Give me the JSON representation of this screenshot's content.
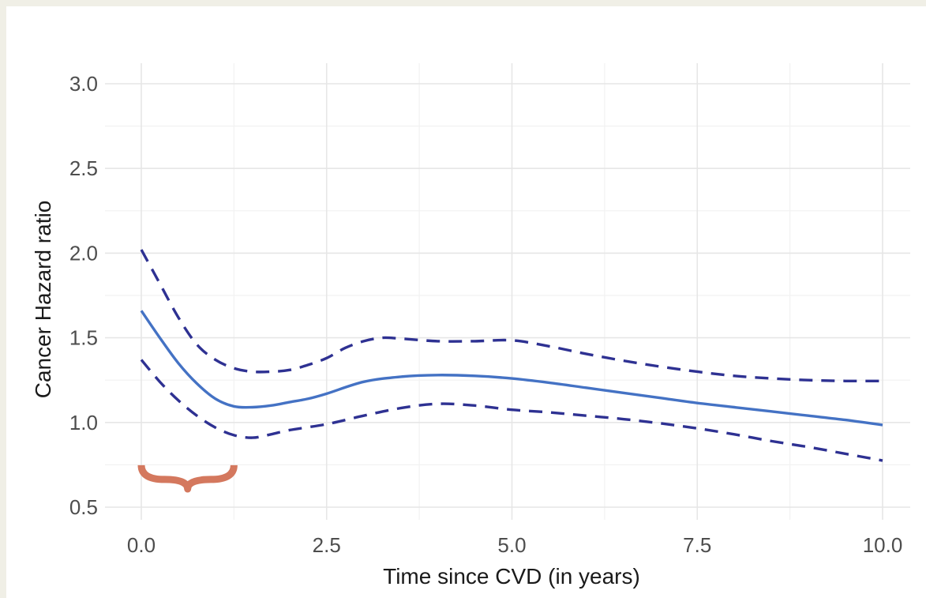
{
  "chart_data": {
    "type": "line",
    "title": "",
    "xlabel": "Time since CVD (in years)",
    "ylabel": "Cancer Hazard ratio",
    "xlim": [
      0,
      10
    ],
    "ylim": [
      0.5,
      3.0
    ],
    "x_ticks": [
      "0.0",
      "2.5",
      "5.0",
      "7.5",
      "10.0"
    ],
    "y_ticks": [
      "0.5",
      "1.0",
      "1.5",
      "2.0",
      "2.5",
      "3.0"
    ],
    "grid": true,
    "legend": "none",
    "series": [
      {
        "style": "solid",
        "color": "#4472c4",
        "points": [
          [
            0,
            1.66
          ],
          [
            0.25,
            1.5
          ],
          [
            0.5,
            1.35
          ],
          [
            0.75,
            1.23
          ],
          [
            1.0,
            1.14
          ],
          [
            1.25,
            1.095
          ],
          [
            1.5,
            1.09
          ],
          [
            1.75,
            1.1
          ],
          [
            2.0,
            1.12
          ],
          [
            2.25,
            1.14
          ],
          [
            2.5,
            1.17
          ],
          [
            3.0,
            1.24
          ],
          [
            3.5,
            1.27
          ],
          [
            4.0,
            1.28
          ],
          [
            4.5,
            1.275
          ],
          [
            5.0,
            1.26
          ],
          [
            5.5,
            1.235
          ],
          [
            6.0,
            1.205
          ],
          [
            6.5,
            1.175
          ],
          [
            7.0,
            1.145
          ],
          [
            7.5,
            1.115
          ],
          [
            8.0,
            1.09
          ],
          [
            8.5,
            1.065
          ],
          [
            9.0,
            1.04
          ],
          [
            9.5,
            1.015
          ],
          [
            10.0,
            0.985
          ]
        ]
      },
      {
        "style": "dashed",
        "color": "#2e3192",
        "points": [
          [
            0,
            2.02
          ],
          [
            0.25,
            1.82
          ],
          [
            0.5,
            1.62
          ],
          [
            0.75,
            1.46
          ],
          [
            1.0,
            1.37
          ],
          [
            1.25,
            1.32
          ],
          [
            1.5,
            1.3
          ],
          [
            1.75,
            1.3
          ],
          [
            2.0,
            1.31
          ],
          [
            2.25,
            1.34
          ],
          [
            2.5,
            1.38
          ],
          [
            2.75,
            1.44
          ],
          [
            3.0,
            1.48
          ],
          [
            3.25,
            1.5
          ],
          [
            3.5,
            1.495
          ],
          [
            4.0,
            1.48
          ],
          [
            4.5,
            1.48
          ],
          [
            5.0,
            1.485
          ],
          [
            5.5,
            1.45
          ],
          [
            6.0,
            1.405
          ],
          [
            6.5,
            1.365
          ],
          [
            7.0,
            1.33
          ],
          [
            7.5,
            1.3
          ],
          [
            8.0,
            1.275
          ],
          [
            8.5,
            1.26
          ],
          [
            9.0,
            1.25
          ],
          [
            9.5,
            1.245
          ],
          [
            10.0,
            1.245
          ]
        ]
      },
      {
        "style": "dashed",
        "color": "#2e3192",
        "points": [
          [
            0,
            1.37
          ],
          [
            0.25,
            1.24
          ],
          [
            0.5,
            1.13
          ],
          [
            0.75,
            1.04
          ],
          [
            1.0,
            0.97
          ],
          [
            1.25,
            0.925
          ],
          [
            1.5,
            0.91
          ],
          [
            1.75,
            0.93
          ],
          [
            2.0,
            0.955
          ],
          [
            2.5,
            0.99
          ],
          [
            3.0,
            1.04
          ],
          [
            3.5,
            1.085
          ],
          [
            4.0,
            1.11
          ],
          [
            4.5,
            1.1
          ],
          [
            5.0,
            1.075
          ],
          [
            5.5,
            1.06
          ],
          [
            6.0,
            1.04
          ],
          [
            6.5,
            1.02
          ],
          [
            7.0,
            0.995
          ],
          [
            7.5,
            0.965
          ],
          [
            8.0,
            0.93
          ],
          [
            8.5,
            0.89
          ],
          [
            9.0,
            0.855
          ],
          [
            9.5,
            0.815
          ],
          [
            10.0,
            0.775
          ]
        ]
      }
    ],
    "annotation": {
      "shape": "curly-brace",
      "color": "#d4785e",
      "x_start": 0.0,
      "x_end": 1.25,
      "y": 0.72
    }
  }
}
